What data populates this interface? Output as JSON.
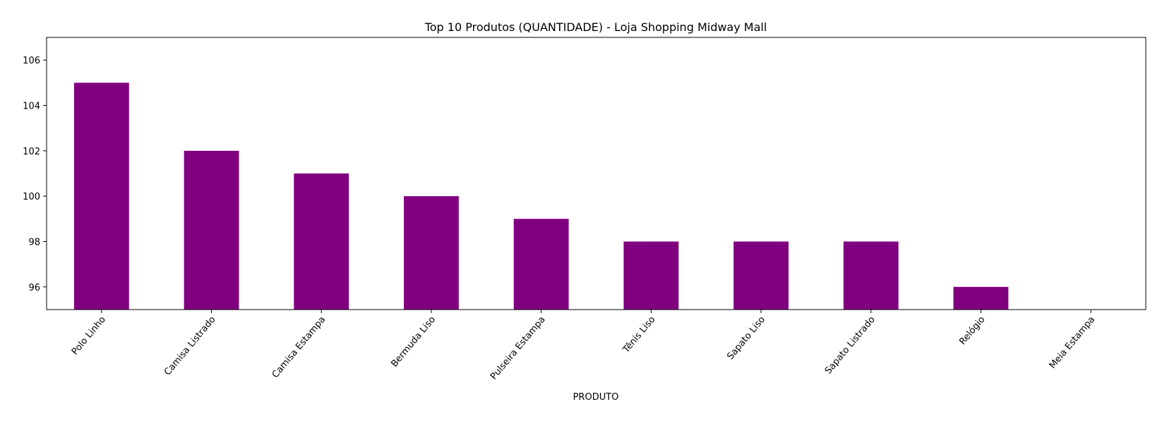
{
  "chart_data": {
    "type": "bar",
    "title": "Top 10 Produtos (QUANTIDADE) - Loja Shopping Midway Mall",
    "xlabel": "PRODUTO",
    "ylabel": "",
    "categories": [
      "Polo Linho",
      "Camisa Listrado",
      "Camisa Estampa",
      "Bermuda Liso",
      "Pulseira Estampa",
      "Tênis Liso",
      "Sapato Liso",
      "Sapato Listrado",
      "Relógio",
      "Meia Estampa"
    ],
    "values": [
      105,
      102,
      101,
      100,
      99,
      98,
      98,
      98,
      96,
      95
    ],
    "ylim": [
      95,
      107
    ],
    "yticks": [
      96,
      98,
      100,
      102,
      104,
      106
    ],
    "bar_color": "#800080",
    "grid": false,
    "legend": "none"
  }
}
